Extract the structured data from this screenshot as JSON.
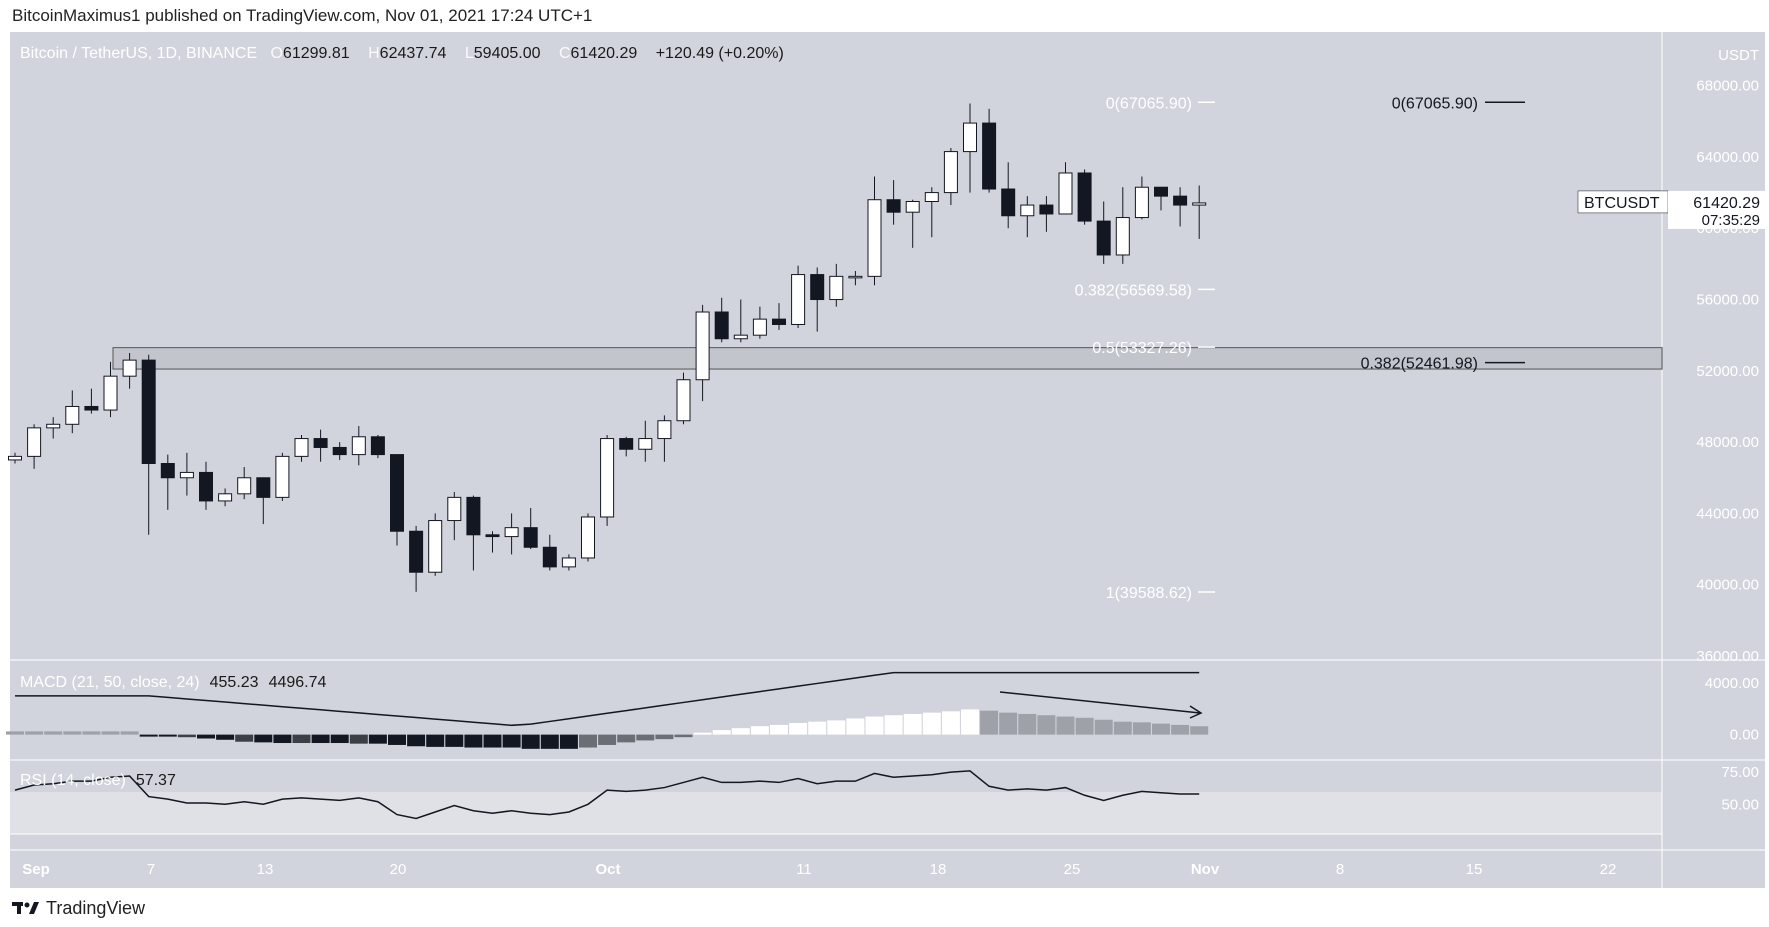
{
  "header": {
    "published": "BitcoinMaximus1 published on TradingView.com, Nov 01, 2021 17:24 UTC+1"
  },
  "legend": {
    "symbol": "Bitcoin / TetherUS, 1D, BINANCE",
    "open_label": "O",
    "open": "61299.81",
    "high_label": "H",
    "high": "62437.74",
    "low_label": "L",
    "low": "59405.00",
    "close_label": "C",
    "close": "61420.29",
    "change": "+120.49 (+0.20%)"
  },
  "macd": {
    "label": "MACD (21, 50, close, 24)",
    "v1": "455.23",
    "v2": "4496.74"
  },
  "rsi": {
    "label": "RSI (14, close)",
    "value": "57.37"
  },
  "brand": {
    "name": "TradingView"
  },
  "colors": {
    "bg_pane": "#d1d4dc",
    "up": "#ffffff",
    "down": "#131722",
    "text_axis": "#ffffff",
    "grid": "#e4e6eb"
  },
  "chart_data": {
    "type": "candlestick",
    "currency_label": "USDT",
    "price_ticks": [
      "68000.00",
      "64000.00",
      "60000.00",
      "56000.00",
      "52000.00",
      "48000.00",
      "44000.00",
      "40000.00",
      "36000.00"
    ],
    "price_range": [
      36000,
      70000
    ],
    "time_ticks": [
      "Sep",
      "7",
      "13",
      "20",
      "Oct",
      "11",
      "18",
      "25",
      "Nov",
      "8",
      "15",
      "22"
    ],
    "current_price": {
      "symbol": "BTCUSDT",
      "price": "61420.29",
      "countdown": "07:35:29"
    },
    "fib_levels": [
      {
        "label": "0(67065.90)",
        "price": 67065.9
      },
      {
        "label": "0.382(56569.58)",
        "price": 56569.58
      },
      {
        "label": "0.5(53327.26)",
        "price": 53327.26
      },
      {
        "label": "1(39588.62)",
        "price": 39588.62
      }
    ],
    "fib_levels_right": [
      {
        "label": "0(67065.90)",
        "price": 67065.9
      },
      {
        "label": "0.382(52461.98)",
        "price": 52461.98
      }
    ],
    "zone": {
      "top": 53300,
      "bottom": 52100
    },
    "candles": [
      [
        47000,
        47400,
        46800,
        47200
      ],
      [
        47200,
        49000,
        46500,
        48800
      ],
      [
        48800,
        49400,
        48200,
        49000
      ],
      [
        49000,
        50900,
        48500,
        50000
      ],
      [
        50000,
        51000,
        49600,
        49800
      ],
      [
        49800,
        52500,
        49400,
        51700
      ],
      [
        51700,
        53000,
        51000,
        52600
      ],
      [
        52600,
        52900,
        42800,
        46800
      ],
      [
        46800,
        47300,
        44200,
        46000
      ],
      [
        46000,
        47400,
        45000,
        46300
      ],
      [
        46300,
        46900,
        44200,
        44700
      ],
      [
        44700,
        45400,
        44400,
        45100
      ],
      [
        45100,
        46600,
        44800,
        46000
      ],
      [
        46000,
        46000,
        43400,
        44900
      ],
      [
        44900,
        47400,
        44700,
        47200
      ],
      [
        47200,
        48400,
        46900,
        48200
      ],
      [
        48200,
        48700,
        46900,
        47700
      ],
      [
        47700,
        48000,
        47000,
        47300
      ],
      [
        47300,
        48900,
        46700,
        48300
      ],
      [
        48300,
        48400,
        47100,
        47300
      ],
      [
        47300,
        47300,
        42200,
        43000
      ],
      [
        43000,
        43300,
        39600,
        40700
      ],
      [
        40700,
        44000,
        40500,
        43600
      ],
      [
        43600,
        45200,
        42500,
        44900
      ],
      [
        44900,
        45000,
        40800,
        42800
      ],
      [
        42800,
        43000,
        41800,
        42700
      ],
      [
        42700,
        44000,
        41700,
        43200
      ],
      [
        43200,
        44300,
        42000,
        42100
      ],
      [
        42100,
        42800,
        40800,
        41000
      ],
      [
        41000,
        41700,
        40800,
        41500
      ],
      [
        41500,
        44000,
        41300,
        43800
      ],
      [
        43800,
        48400,
        43300,
        48200
      ],
      [
        48200,
        48300,
        47200,
        47600
      ],
      [
        47600,
        49200,
        46900,
        48200
      ],
      [
        48200,
        49500,
        46900,
        49200
      ],
      [
        49200,
        51900,
        49000,
        51500
      ],
      [
        51500,
        55700,
        50300,
        55300
      ],
      [
        55300,
        56100,
        53600,
        53800
      ],
      [
        53800,
        56000,
        53600,
        54000
      ],
      [
        54000,
        55600,
        53800,
        54900
      ],
      [
        54900,
        55800,
        54300,
        54600
      ],
      [
        54600,
        57900,
        54400,
        57400
      ],
      [
        57400,
        57800,
        54200,
        56000
      ],
      [
        56000,
        58000,
        55600,
        57300
      ],
      [
        57300,
        57600,
        56800,
        57300
      ],
      [
        57300,
        62900,
        56800,
        61600
      ],
      [
        61600,
        62700,
        60200,
        60900
      ],
      [
        60900,
        61600,
        58900,
        61500
      ],
      [
        61500,
        62300,
        59500,
        62000
      ],
      [
        62000,
        64500,
        61300,
        64300
      ],
      [
        64300,
        67000,
        62000,
        65900
      ],
      [
        65900,
        66700,
        62000,
        62200
      ],
      [
        62200,
        63700,
        60000,
        60700
      ],
      [
        60700,
        61800,
        59500,
        61300
      ],
      [
        61300,
        61800,
        59800,
        60800
      ],
      [
        60800,
        63700,
        60800,
        63100
      ],
      [
        63100,
        63300,
        60200,
        60400
      ],
      [
        60400,
        61500,
        58000,
        58500
      ],
      [
        58500,
        62300,
        58000,
        60600
      ],
      [
        60600,
        62900,
        60500,
        62300
      ],
      [
        62300,
        62300,
        61000,
        61800
      ],
      [
        61800,
        62300,
        60100,
        61300
      ],
      [
        61300,
        62400,
        59400,
        61420
      ]
    ],
    "macd_hist": [
      250,
      250,
      250,
      250,
      250,
      250,
      250,
      -150,
      -100,
      -200,
      -300,
      -400,
      -550,
      -600,
      -650,
      -650,
      -650,
      -650,
      -700,
      -700,
      -800,
      -900,
      -950,
      -950,
      -1000,
      -1000,
      -1000,
      -1100,
      -1100,
      -1100,
      -1000,
      -800,
      -600,
      -450,
      -350,
      -200,
      150,
      350,
      500,
      650,
      750,
      900,
      1000,
      1100,
      1250,
      1400,
      1500,
      1600,
      1700,
      1800,
      1950,
      1850,
      1700,
      1600,
      1500,
      1400,
      1300,
      1150,
      1000,
      950,
      850,
      750,
      650
    ],
    "macd_hist_colors": "first 7 gray-up, then down dark growing, light near zero, white rising, gray falling",
    "rsi": [
      61,
      65,
      66,
      68,
      68,
      71,
      72,
      56,
      54,
      51,
      51,
      50,
      52,
      50,
      54,
      55,
      54,
      53,
      55,
      52,
      42,
      39,
      44,
      49,
      45,
      43,
      45,
      43,
      42,
      44,
      50,
      61,
      60,
      61,
      63,
      67,
      71,
      67,
      67,
      68,
      67,
      70,
      66,
      68,
      68,
      74,
      71,
      72,
      73,
      75,
      76,
      64,
      61,
      62,
      61,
      63,
      57,
      53,
      57,
      60,
      59,
      58,
      58
    ],
    "rsi_ticks": [
      "75.00",
      "50.00"
    ],
    "macd_ticks": [
      "4000.00",
      "0.00"
    ]
  }
}
